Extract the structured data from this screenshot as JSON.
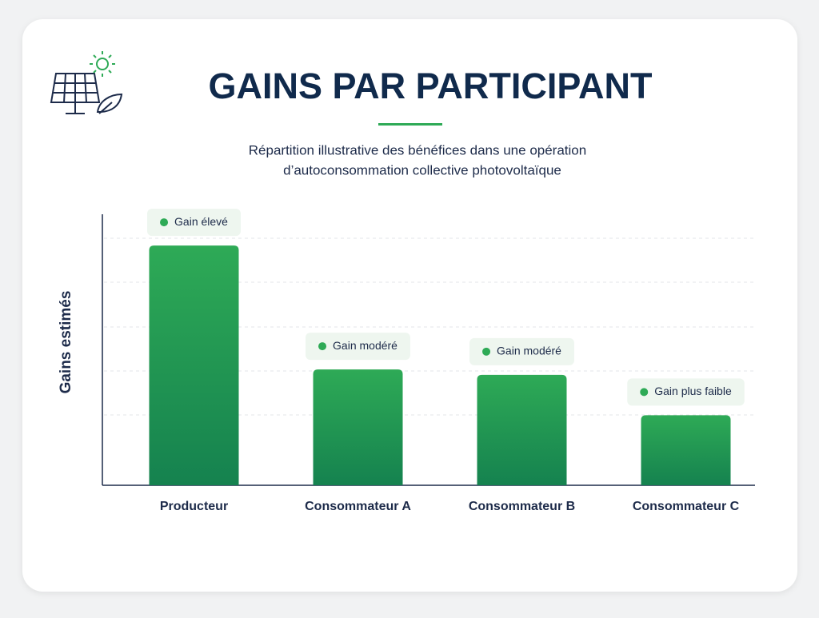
{
  "chart_data": {
    "type": "bar",
    "title": "GAINS PAR PARTICIPANT",
    "subtitle": [
      "Répartition illustrative des bénéfices dans une opération",
      "d’autoconsommation collective photovoltaïque"
    ],
    "y_label": "Gains estimés",
    "categories": [
      "Producteur",
      "Consommateur A",
      "Consommateur B",
      "Consommateur C"
    ],
    "values": [
      89,
      43,
      41,
      26
    ],
    "annotations": [
      "Gain élevé",
      "Gain modéré",
      "Gain modéré",
      "Gain plus faible"
    ],
    "color": "#2eaa56",
    "ylim": [
      0,
      100
    ]
  }
}
